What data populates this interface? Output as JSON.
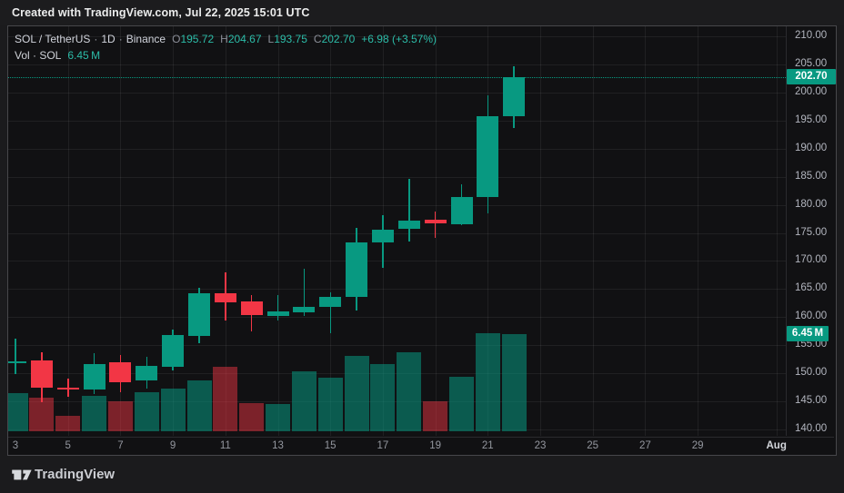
{
  "top_bar": {
    "text": "Created with TradingView.com, Jul 22, 2025 15:01 UTC"
  },
  "header": {
    "symbol": "SOL / TetherUS",
    "separator": "·",
    "interval": "1D",
    "exchange": "Binance",
    "ohlc": [
      {
        "label": "O",
        "value": "195.72"
      },
      {
        "label": "H",
        "value": "204.67"
      },
      {
        "label": "L",
        "value": "193.75"
      },
      {
        "label": "C",
        "value": "202.70"
      }
    ],
    "change": "+6.98 (+3.57%)",
    "volume_label": "Vol · SOL",
    "volume_value": "6.45 M"
  },
  "price_axis": {
    "labels": [
      "210.00",
      "205.00",
      "200.00",
      "195.00",
      "190.00",
      "185.00",
      "180.00",
      "175.00",
      "170.00",
      "165.00",
      "160.00",
      "155.00",
      "150.00",
      "145.00",
      "140.00"
    ],
    "current_price_badge": "202.70",
    "volume_badge": "6.45 M"
  },
  "time_axis": {
    "ticks": [
      {
        "label": "3",
        "day": 3,
        "grid": false
      },
      {
        "label": "5",
        "day": 5
      },
      {
        "label": "7",
        "day": 7
      },
      {
        "label": "9",
        "day": 9
      },
      {
        "label": "11",
        "day": 11
      },
      {
        "label": "13",
        "day": 13
      },
      {
        "label": "15",
        "day": 15
      },
      {
        "label": "17",
        "day": 17
      },
      {
        "label": "19",
        "day": 19
      },
      {
        "label": "21",
        "day": 21
      },
      {
        "label": "23",
        "day": 23
      },
      {
        "label": "25",
        "day": 25
      },
      {
        "label": "27",
        "day": 27
      },
      {
        "label": "29",
        "day": 29
      },
      {
        "label": "Aug",
        "day": 32,
        "bright": true
      }
    ]
  },
  "footer": {
    "brand": "TradingView"
  },
  "colors": {
    "up": "#089981",
    "down": "#f23645",
    "up_volume": "rgba(8,153,129,0.55)",
    "down_volume": "rgba(242,54,69,0.48)",
    "accent_text": "#2cbca8",
    "badge_bg": "#089981",
    "grid": "rgba(250,250,250,0.065)"
  },
  "chart_data": {
    "type": "candlestick+volume",
    "title": "SOL / TetherUS · 1D · Binance",
    "x_unit": "day of July 2025 (32 = Aug 1)",
    "ylim": [
      138.87,
      211.78
    ],
    "price_gridlines": [
      140,
      145,
      150,
      155,
      160,
      165,
      170,
      175,
      180,
      185,
      190,
      195,
      200,
      205,
      210
    ],
    "current_price": 202.7,
    "current_volume_m": 6.45,
    "max_volume_m": 6.51,
    "legend": "Vol · SOL",
    "candles": [
      {
        "day": 3,
        "open": 152.0,
        "high": 156.2,
        "low": 149.9,
        "close": 152.2,
        "volume_m": 2.53
      },
      {
        "day": 4,
        "open": 152.3,
        "high": 153.7,
        "low": 144.9,
        "close": 147.4,
        "volume_m": 2.23
      },
      {
        "day": 5,
        "open": 147.5,
        "high": 149.1,
        "low": 145.8,
        "close": 147.3,
        "volume_m": 1.03
      },
      {
        "day": 6,
        "open": 147.1,
        "high": 153.6,
        "low": 146.3,
        "close": 151.6,
        "volume_m": 2.35
      },
      {
        "day": 7,
        "open": 151.9,
        "high": 153.3,
        "low": 146.6,
        "close": 148.4,
        "volume_m": 1.99
      },
      {
        "day": 8,
        "open": 148.7,
        "high": 152.9,
        "low": 147.3,
        "close": 151.4,
        "volume_m": 2.59
      },
      {
        "day": 9,
        "open": 151.2,
        "high": 157.8,
        "low": 150.5,
        "close": 156.8,
        "volume_m": 2.83
      },
      {
        "day": 10,
        "open": 156.7,
        "high": 165.2,
        "low": 155.4,
        "close": 164.3,
        "volume_m": 3.38
      },
      {
        "day": 11,
        "open": 164.3,
        "high": 168.0,
        "low": 159.4,
        "close": 162.6,
        "volume_m": 4.28
      },
      {
        "day": 12,
        "open": 162.8,
        "high": 163.9,
        "low": 157.5,
        "close": 160.4,
        "volume_m": 1.87
      },
      {
        "day": 13,
        "open": 160.2,
        "high": 163.9,
        "low": 159.4,
        "close": 161.0,
        "volume_m": 1.81
      },
      {
        "day": 14,
        "open": 160.9,
        "high": 168.6,
        "low": 160.2,
        "close": 161.8,
        "volume_m": 3.98
      },
      {
        "day": 15,
        "open": 161.8,
        "high": 164.4,
        "low": 157.1,
        "close": 163.6,
        "volume_m": 3.56
      },
      {
        "day": 16,
        "open": 163.6,
        "high": 175.9,
        "low": 161.2,
        "close": 173.3,
        "volume_m": 5.0
      },
      {
        "day": 17,
        "open": 173.3,
        "high": 178.2,
        "low": 168.8,
        "close": 175.6,
        "volume_m": 4.46
      },
      {
        "day": 18,
        "open": 175.7,
        "high": 184.6,
        "low": 173.5,
        "close": 177.2,
        "volume_m": 5.25
      },
      {
        "day": 19,
        "open": 177.3,
        "high": 178.8,
        "low": 174.1,
        "close": 176.7,
        "volume_m": 1.99
      },
      {
        "day": 20,
        "open": 176.5,
        "high": 183.7,
        "low": 176.4,
        "close": 181.4,
        "volume_m": 3.62
      },
      {
        "day": 21,
        "open": 181.4,
        "high": 199.5,
        "low": 178.5,
        "close": 195.8,
        "volume_m": 6.51
      },
      {
        "day": 22,
        "open": 195.72,
        "high": 204.67,
        "low": 193.75,
        "close": 202.7,
        "volume_m": 6.45
      }
    ]
  }
}
